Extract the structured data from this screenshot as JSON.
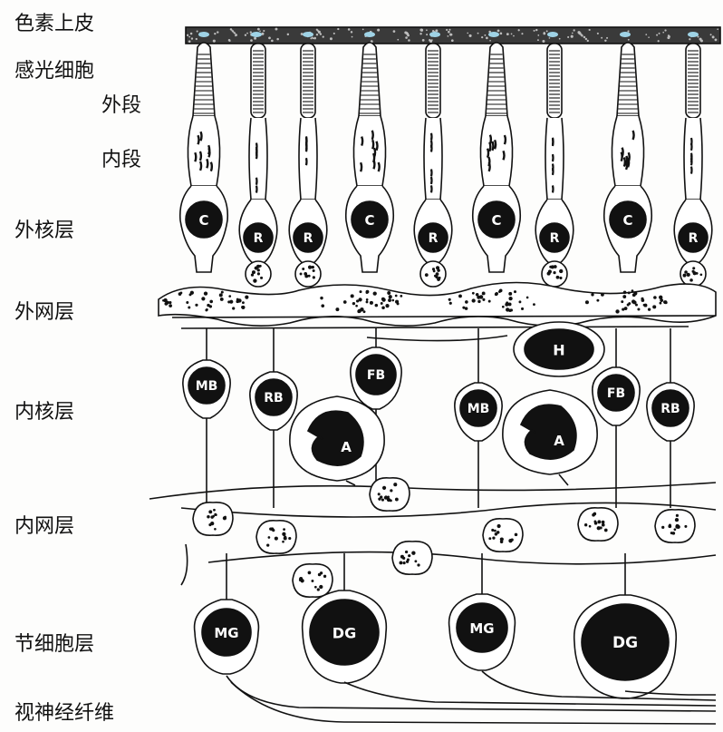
{
  "layers": {
    "pigment_epithelium": "色素上皮",
    "photoreceptors": "感光细胞",
    "outer_segment": "外段",
    "inner_segment": "内段",
    "outer_nuclear": "外核层",
    "outer_plexiform": "外网层",
    "inner_nuclear": "内核层",
    "inner_plexiform": "内网层",
    "ganglion": "节细胞层",
    "optic_fibers": "视神经纤维"
  },
  "cells": {
    "cone": "C",
    "rod": "R",
    "horizontal": "H",
    "midget_bipolar": "MB",
    "rod_bipolar": "RB",
    "flat_bipolar": "FB",
    "amacrine": "A",
    "midget_ganglion": "MG",
    "diffuse_ganglion": "DG"
  }
}
